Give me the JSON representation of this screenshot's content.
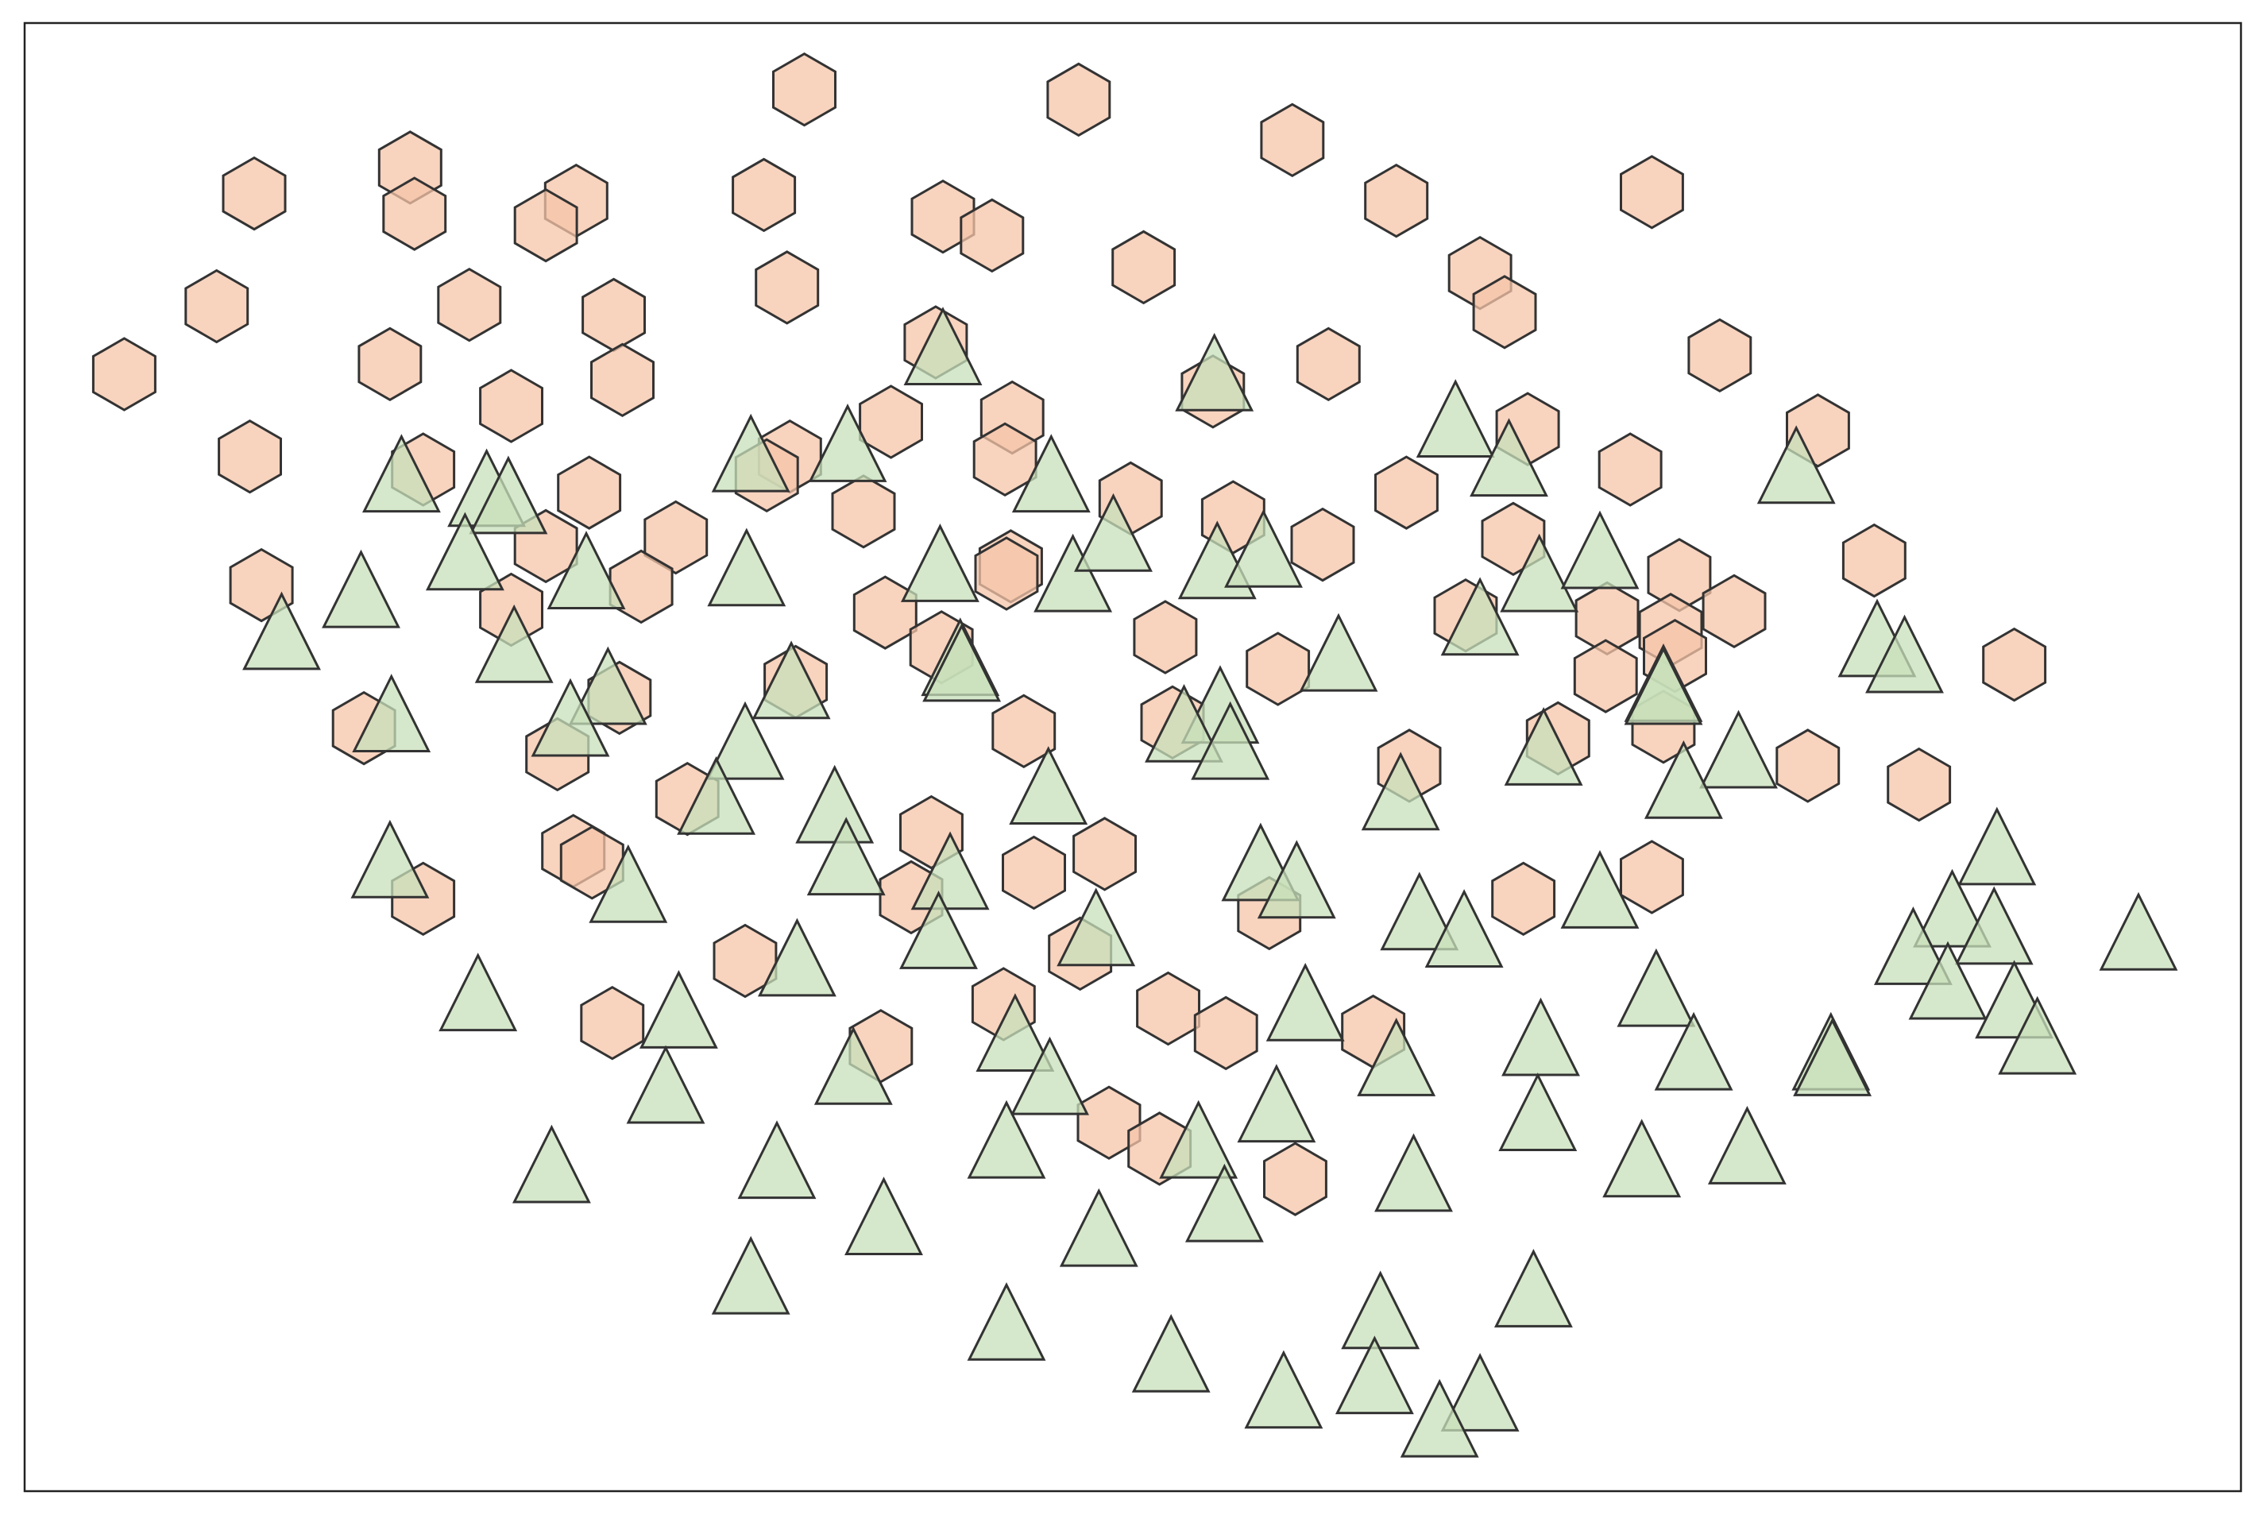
{
  "chart_data": {
    "type": "scatter",
    "xlim": [
      17,
      1552
    ],
    "ylim": [
      0,
      1016
    ],
    "series": [
      {
        "color": "#f6c4a8",
        "marker": "hexagon",
        "x": [
          557,
          747,
          895,
          176,
          284,
          287,
          399,
          378,
          529,
          653,
          687,
          967,
          1144,
          792,
          1025,
          1042,
          150,
          325,
          425,
          545,
          86,
          270,
          431,
          354,
          648,
          840,
          920,
          1191,
          173,
          293,
          547,
          531,
          617,
          701,
          696,
          1058,
          1129,
          1259,
          408,
          783,
          598,
          854,
          974,
          468,
          378,
          181,
          444,
          916,
          1048,
          700,
          697,
          1298,
          1163,
          354,
          613,
          807,
          1015,
          1113,
          1157,
          1201,
          652,
          1160,
          1395,
          885,
          1112,
          551,
          429,
          252,
          709,
          812,
          1079,
          1152,
          386,
          976,
          1252,
          1329,
          476,
          645,
          397,
          410,
          765,
          716,
          631,
          293,
          879,
          1055,
          1144,
          516,
          748,
          695,
          809,
          849,
          951,
          424,
          610,
          768,
          803,
          897
        ],
        "values": [
          970,
          963,
          935,
          898,
          916,
          884,
          893,
          876,
          897,
          882,
          869,
          893,
          899,
          847,
          843,
          816,
          820,
          821,
          814,
          833,
          773,
          780,
          769,
          751,
          795,
          761,
          780,
          786,
          716,
          707,
          716,
          703,
          740,
          743,
          714,
          735,
          707,
          734,
          691,
          687,
          678,
          674,
          691,
          660,
          654,
          627,
          626,
          655,
          659,
          640,
          635,
          644,
          634,
          610,
          608,
          591,
          606,
          604,
          596,
          609,
          584,
          578,
          572,
          569,
          564,
          560,
          549,
          528,
          526,
          532,
          521,
          529,
          510,
          502,
          502,
          489,
          479,
          456,
          443,
          435,
          441,
          428,
          411,
          410,
          400,
          410,
          425,
          367,
          372,
          337,
          334,
          317,
          318,
          324,
          308,
          255,
          237,
          216
        ]
      },
      {
        "color": "#c8e0ba",
        "marker": "triangle",
        "x": [
          653,
          841,
          1008,
          1045,
          278,
          337,
          352,
          520,
          587,
          728,
          1244,
          322,
          250,
          406,
          517,
          651,
          743,
          771,
          843,
          875,
          1066,
          1108,
          195,
          356,
          1025,
          1300,
          1319,
          927,
          665,
          666,
          548,
          421,
          271,
          395,
          1152,
          1152,
          845,
          820,
          852,
          516,
          726,
          1069,
          1204,
          1166,
          970,
          496,
          578,
          586,
          658,
          873,
          898,
          270,
          435,
          983,
          1014,
          1108,
          1383,
          1352,
          1381,
          1325,
          1349,
          1395,
          1411,
          1481,
          650,
          759,
          552,
          331,
          470,
          904,
          1147,
          1067,
          1173,
          1268,
          1269,
          967,
          703,
          727,
          591,
          461,
          884,
          1065,
          1137,
          1210,
          382,
          538,
          697,
          830,
          848,
          979,
          612,
          761,
          520,
          1062,
          697,
          956,
          811,
          952,
          889,
          1025,
          997
        ],
        "values": [
          787,
          769,
          737,
          710,
          699,
          689,
          684,
          713,
          720,
          699,
          705,
          645,
          619,
          632,
          634,
          637,
          630,
          658,
          639,
          647,
          630,
          646,
          590,
          581,
          600,
          585,
          574,
          575,
          572,
          568,
          556,
          552,
          533,
          530,
          554,
          552,
          539,
          526,
          514,
          514,
          483,
          510,
          508,
          487,
          479,
          476,
          470,
          434,
          424,
          430,
          418,
          432,
          415,
          396,
          384,
          411,
          441,
          398,
          386,
          372,
          348,
          335,
          310,
          382,
          383,
          385,
          364,
          340,
          328,
          333,
          343,
          309,
          299,
          299,
          295,
          295,
          312,
          282,
          289,
          276,
          263,
          257,
          225,
          234,
          221,
          224,
          238,
          238,
          194,
          215,
          185,
          177,
          144,
          135,
          112,
          120,
          90,
          75,
          65,
          63,
          45
        ]
      }
    ]
  }
}
